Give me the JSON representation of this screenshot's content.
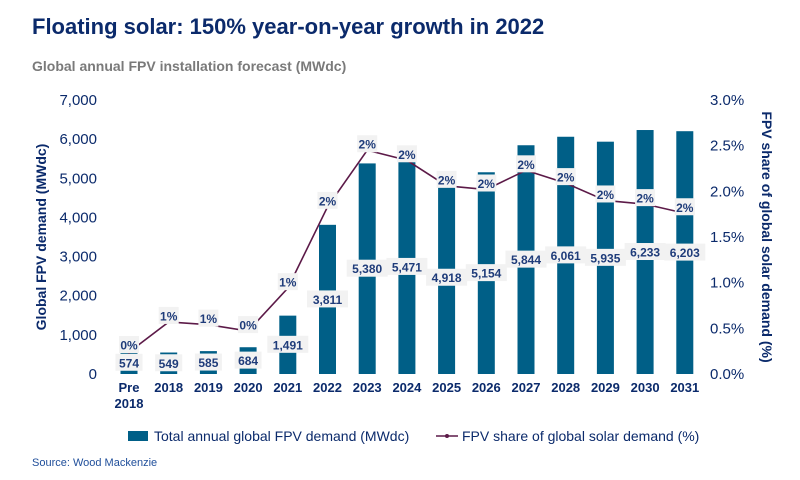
{
  "title": "Floating solar: 150% year-on-year growth in 2022",
  "subtitle": "Global annual FPV installation forecast (MWdc)",
  "source": "Source: Wood Mackenzie",
  "chart_data": {
    "type": "bar+line",
    "categories": [
      "Pre 2018",
      "2018",
      "2019",
      "2020",
      "2021",
      "2022",
      "2023",
      "2024",
      "2025",
      "2026",
      "2027",
      "2028",
      "2029",
      "2030",
      "2031"
    ],
    "series": [
      {
        "name": "Total annual global FPV demand (MWdc)",
        "type": "bar",
        "axis": "left",
        "values": [
          574,
          549,
          585,
          684,
          1491,
          3811,
          5380,
          5471,
          4918,
          5154,
          5844,
          6061,
          5935,
          6233,
          6203
        ],
        "labels": [
          "574",
          "549",
          "585",
          "684",
          "1,491",
          "3,811",
          "5,380",
          "5,471",
          "4,918",
          "5,154",
          "5,844",
          "6,061",
          "5,935",
          "6,233",
          "6,203"
        ],
        "color": "#005f87"
      },
      {
        "name": "FPV share of global solar demand (%)",
        "type": "line",
        "axis": "right",
        "values": [
          0.24,
          0.57,
          0.54,
          0.47,
          0.94,
          1.83,
          2.45,
          2.34,
          2.06,
          2.02,
          2.23,
          2.09,
          1.9,
          1.86,
          1.76
        ],
        "labels": [
          "0%",
          "1%",
          "1%",
          "0%",
          "1%",
          "2%",
          "2%",
          "2%",
          "2%",
          "2%",
          "2%",
          "2%",
          "2%",
          "2%",
          "2%"
        ],
        "color": "#5c1a48"
      }
    ],
    "ylabel": "Global FPV demand (MWdc)",
    "ylabel_right": "FPV share of global solar demand (%)",
    "ylim": [
      0,
      7000
    ],
    "ylim_right": [
      0,
      3.0
    ],
    "yticks": [
      "0",
      "1,000",
      "2,000",
      "3,000",
      "4,000",
      "5,000",
      "6,000",
      "7,000"
    ],
    "yticks_right": [
      "0.0%",
      "0.5%",
      "1.0%",
      "1.5%",
      "2.0%",
      "2.5%",
      "3.0%"
    ],
    "grid": false,
    "legend_position": "bottom"
  }
}
